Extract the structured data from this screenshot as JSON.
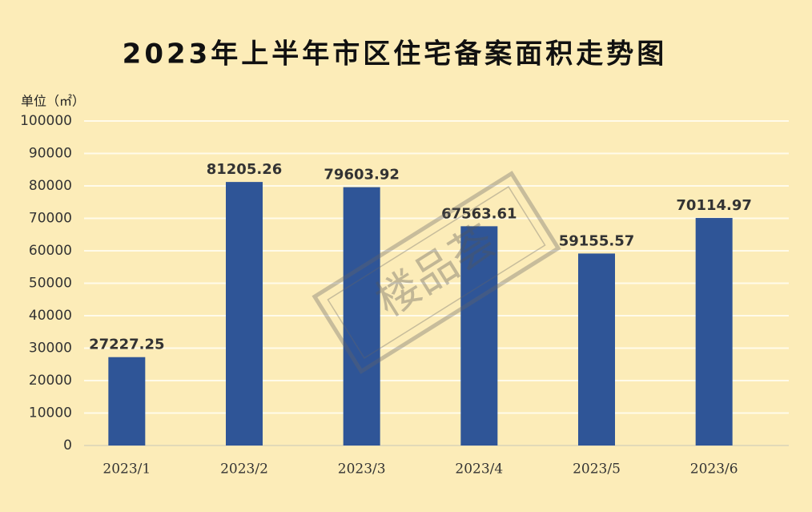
{
  "chart_data": {
    "type": "bar",
    "title": "2023年上半年市区住宅备案面积走势图",
    "y_label": "单位（㎡）",
    "categories": [
      "2023/1",
      "2023/2",
      "2023/3",
      "2023/4",
      "2023/5",
      "2023/6"
    ],
    "values": [
      27227.25,
      81205.26,
      79603.92,
      67563.61,
      59155.57,
      70114.97
    ],
    "color": "#2f5597",
    "ylim": [
      0,
      100000
    ],
    "yticks": [
      0,
      10000,
      20000,
      30000,
      40000,
      50000,
      60000,
      70000,
      80000,
      90000,
      100000
    ],
    "grid": true,
    "watermark": "楼品荟"
  }
}
